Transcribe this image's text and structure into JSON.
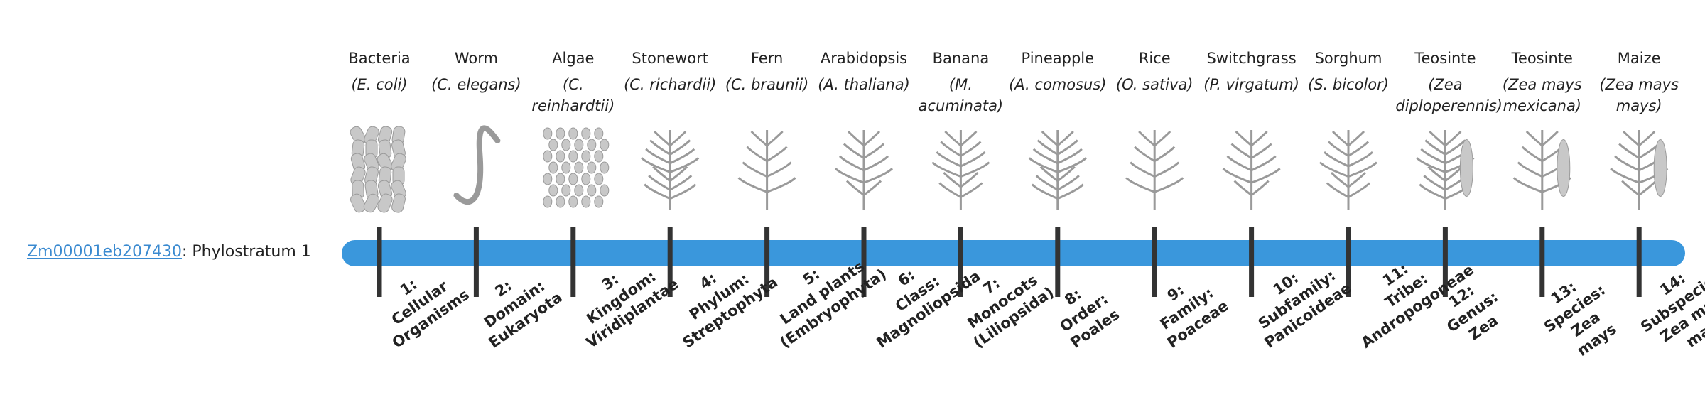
{
  "gene": {
    "id": "Zm00001eb207430",
    "suffix": ": Phylostratum 1"
  },
  "strata": [
    {
      "name": "Bacteria",
      "species": "(E. coli)",
      "label_lines": [
        "1:",
        "Cellular",
        "Organisms"
      ]
    },
    {
      "name": "Worm",
      "species": "(C. elegans)",
      "label_lines": [
        "2:",
        "Domain:",
        "Eukaryota"
      ]
    },
    {
      "name": "Algae",
      "species": "(C. reinhardtii)",
      "label_lines": [
        "3:",
        "Kingdom:",
        "Viridiplantae"
      ]
    },
    {
      "name": "Stonewort",
      "species": "(C. richardii)",
      "label_lines": [
        "4:",
        "Phylum:",
        "Streptophyta"
      ]
    },
    {
      "name": "Fern",
      "species": "(C. braunii)",
      "label_lines": [
        "5:",
        "Land plants",
        "(Embryophyta)"
      ]
    },
    {
      "name": "Arabidopsis",
      "species": "(A. thaliana)",
      "label_lines": [
        "6:",
        "Class:",
        "Magnoliopsida"
      ]
    },
    {
      "name": "Banana",
      "species": "(M. acuminata)",
      "label_lines": [
        "7:",
        "Monocots",
        "(Liliopsida)"
      ]
    },
    {
      "name": "Pineapple",
      "species": "(A. comosus)",
      "label_lines": [
        "8:",
        "Order:",
        "Poales"
      ]
    },
    {
      "name": "Rice",
      "species": "(O. sativa)",
      "label_lines": [
        "9:",
        "Family:",
        "Poaceae"
      ]
    },
    {
      "name": "Switchgrass",
      "species": "(P. virgatum)",
      "label_lines": [
        "10:",
        "Subfamily:",
        "Panicoideae"
      ]
    },
    {
      "name": "Sorghum",
      "species": "(S. bicolor)",
      "label_lines": [
        "11:",
        "Tribe:",
        "Andropogoneae"
      ]
    },
    {
      "name": "Teosinte",
      "species": "(Zea diploperennis)",
      "label_lines": [
        "12:",
        "Genus:",
        "Zea"
      ]
    },
    {
      "name": "Teosinte",
      "species": "(Zea mays mexicana)",
      "label_lines": [
        "13:",
        "Species:",
        "Zea",
        "mays"
      ]
    },
    {
      "name": "Maize",
      "species": "(Zea mays mays)",
      "label_lines": [
        "14:",
        "Subspecies:",
        "Zea mays",
        "mays"
      ]
    }
  ]
}
